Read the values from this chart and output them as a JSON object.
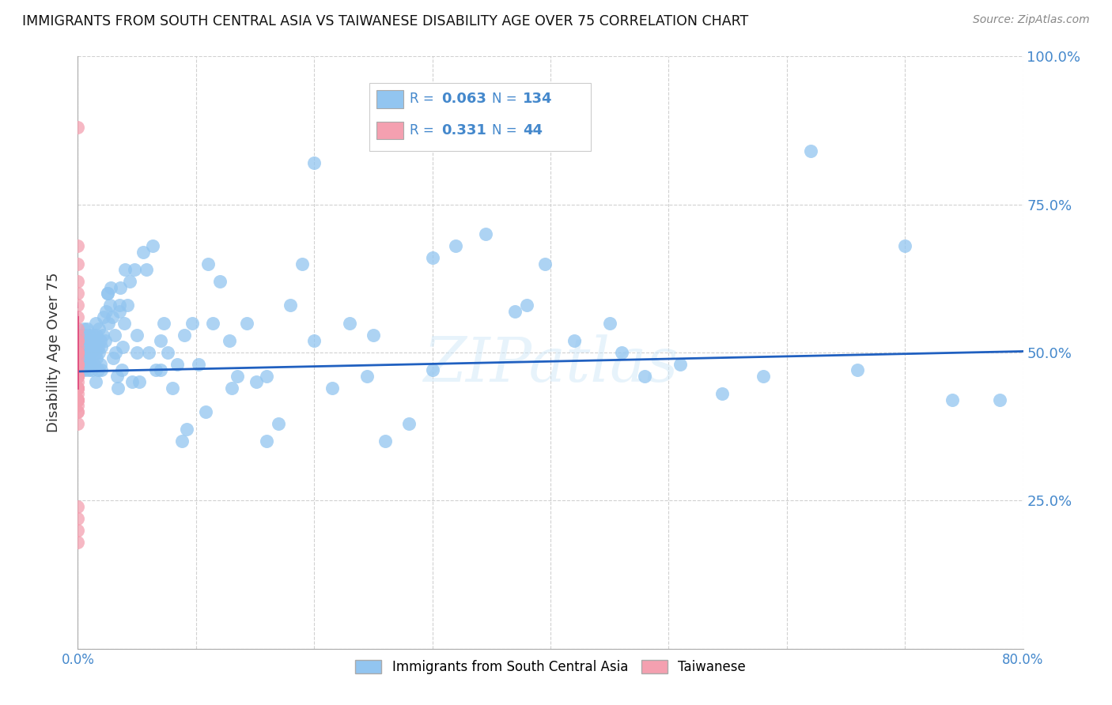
{
  "title": "IMMIGRANTS FROM SOUTH CENTRAL ASIA VS TAIWANESE DISABILITY AGE OVER 75 CORRELATION CHART",
  "source": "Source: ZipAtlas.com",
  "ylabel": "Disability Age Over 75",
  "x_min": 0.0,
  "x_max": 0.8,
  "y_min": 0.0,
  "y_max": 1.0,
  "x_ticks": [
    0.0,
    0.1,
    0.2,
    0.3,
    0.4,
    0.5,
    0.6,
    0.7,
    0.8
  ],
  "x_tick_labels": [
    "0.0%",
    "",
    "",
    "",
    "",
    "",
    "",
    "",
    "80.0%"
  ],
  "y_ticks": [
    0.0,
    0.25,
    0.5,
    0.75,
    1.0
  ],
  "y_tick_labels_right": [
    "",
    "25.0%",
    "50.0%",
    "75.0%",
    "100.0%"
  ],
  "blue_R": 0.063,
  "blue_N": 134,
  "pink_R": 0.331,
  "pink_N": 44,
  "blue_color": "#92C5F0",
  "pink_color": "#F4A0B0",
  "blue_line_color": "#2060C0",
  "pink_line_color": "#E05080",
  "legend_label_blue": "Immigrants from South Central Asia",
  "legend_label_pink": "Taiwanese",
  "watermark": "ZIPatlas",
  "blue_line_x0": 0.0,
  "blue_line_y0": 0.468,
  "blue_line_x1": 0.8,
  "blue_line_y1": 0.502,
  "pink_line_solid_x0": 0.0,
  "pink_line_solid_y0": 0.44,
  "pink_line_solid_x1": 0.0,
  "pink_line_solid_y1": 0.56,
  "pink_line_dash_x0": 0.0,
  "pink_line_dash_y0": 0.56,
  "pink_line_dash_x1": -0.012,
  "pink_line_dash_y1": 1.0,
  "blue_x": [
    0.001,
    0.001,
    0.002,
    0.002,
    0.003,
    0.003,
    0.003,
    0.004,
    0.004,
    0.004,
    0.005,
    0.005,
    0.005,
    0.006,
    0.006,
    0.006,
    0.007,
    0.007,
    0.007,
    0.008,
    0.008,
    0.008,
    0.009,
    0.009,
    0.01,
    0.01,
    0.01,
    0.011,
    0.011,
    0.012,
    0.012,
    0.013,
    0.013,
    0.014,
    0.014,
    0.015,
    0.015,
    0.016,
    0.016,
    0.017,
    0.017,
    0.018,
    0.018,
    0.019,
    0.019,
    0.02,
    0.02,
    0.021,
    0.022,
    0.023,
    0.024,
    0.025,
    0.026,
    0.027,
    0.028,
    0.029,
    0.03,
    0.031,
    0.032,
    0.033,
    0.034,
    0.035,
    0.036,
    0.037,
    0.038,
    0.039,
    0.04,
    0.042,
    0.044,
    0.046,
    0.048,
    0.05,
    0.052,
    0.055,
    0.058,
    0.06,
    0.063,
    0.066,
    0.07,
    0.073,
    0.076,
    0.08,
    0.084,
    0.088,
    0.092,
    0.097,
    0.102,
    0.108,
    0.114,
    0.12,
    0.128,
    0.135,
    0.143,
    0.151,
    0.16,
    0.17,
    0.18,
    0.19,
    0.2,
    0.215,
    0.23,
    0.245,
    0.26,
    0.28,
    0.3,
    0.32,
    0.345,
    0.37,
    0.395,
    0.42,
    0.45,
    0.48,
    0.51,
    0.545,
    0.58,
    0.62,
    0.66,
    0.7,
    0.74,
    0.78,
    0.015,
    0.025,
    0.035,
    0.05,
    0.07,
    0.09,
    0.11,
    0.13,
    0.16,
    0.2,
    0.25,
    0.3,
    0.38,
    0.46
  ],
  "blue_y": [
    0.49,
    0.51,
    0.48,
    0.52,
    0.47,
    0.5,
    0.53,
    0.49,
    0.52,
    0.5,
    0.48,
    0.51,
    0.54,
    0.47,
    0.5,
    0.53,
    0.49,
    0.52,
    0.5,
    0.48,
    0.51,
    0.54,
    0.47,
    0.5,
    0.49,
    0.52,
    0.53,
    0.48,
    0.51,
    0.5,
    0.47,
    0.53,
    0.51,
    0.48,
    0.52,
    0.5,
    0.55,
    0.49,
    0.53,
    0.51,
    0.47,
    0.54,
    0.5,
    0.48,
    0.52,
    0.51,
    0.47,
    0.53,
    0.56,
    0.52,
    0.57,
    0.6,
    0.55,
    0.58,
    0.61,
    0.56,
    0.49,
    0.53,
    0.5,
    0.46,
    0.44,
    0.57,
    0.61,
    0.47,
    0.51,
    0.55,
    0.64,
    0.58,
    0.62,
    0.45,
    0.64,
    0.53,
    0.45,
    0.67,
    0.64,
    0.5,
    0.68,
    0.47,
    0.52,
    0.55,
    0.5,
    0.44,
    0.48,
    0.35,
    0.37,
    0.55,
    0.48,
    0.4,
    0.55,
    0.62,
    0.52,
    0.46,
    0.55,
    0.45,
    0.35,
    0.38,
    0.58,
    0.65,
    0.52,
    0.44,
    0.55,
    0.46,
    0.35,
    0.38,
    0.47,
    0.68,
    0.7,
    0.57,
    0.65,
    0.52,
    0.55,
    0.46,
    0.48,
    0.43,
    0.46,
    0.84,
    0.47,
    0.68,
    0.42,
    0.42,
    0.45,
    0.6,
    0.58,
    0.5,
    0.47,
    0.53,
    0.65,
    0.44,
    0.46,
    0.82,
    0.53,
    0.66,
    0.58,
    0.5
  ],
  "pink_x": [
    0.0,
    0.0,
    0.0,
    0.0,
    0.0,
    0.0,
    0.0,
    0.0,
    0.0,
    0.0,
    0.0,
    0.0,
    0.0,
    0.0,
    0.0,
    0.0,
    0.0,
    0.0,
    0.0,
    0.0,
    0.0,
    0.0,
    0.0,
    0.0,
    0.0,
    0.0,
    0.0,
    0.0,
    0.0,
    0.0,
    0.0,
    0.0,
    0.0,
    0.0,
    0.0,
    0.0,
    0.0,
    0.0,
    0.0,
    0.0,
    0.0,
    0.0,
    0.0,
    0.0
  ],
  "pink_y": [
    0.88,
    0.68,
    0.65,
    0.62,
    0.6,
    0.58,
    0.56,
    0.54,
    0.53,
    0.52,
    0.51,
    0.5,
    0.49,
    0.48,
    0.47,
    0.46,
    0.45,
    0.44,
    0.43,
    0.42,
    0.41,
    0.4,
    0.52,
    0.5,
    0.48,
    0.46,
    0.44,
    0.42,
    0.4,
    0.5,
    0.48,
    0.46,
    0.44,
    0.42,
    0.38,
    0.5,
    0.48,
    0.46,
    0.44,
    0.42,
    0.24,
    0.22,
    0.2,
    0.18
  ]
}
